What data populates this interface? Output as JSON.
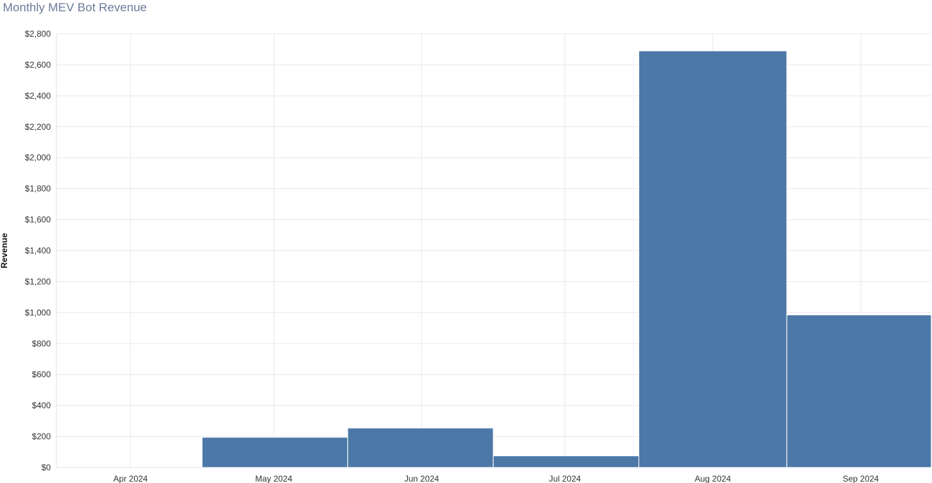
{
  "chart_data": {
    "type": "bar",
    "title": "Monthly MEV Bot Revenue",
    "xlabel": "",
    "ylabel": "Revenue",
    "categories": [
      "Apr 2024",
      "May 2024",
      "Jun 2024",
      "Jul 2024",
      "Aug 2024",
      "Sep 2024"
    ],
    "month_starts": [
      "2024-04-01",
      "2024-05-01",
      "2024-06-01",
      "2024-07-01",
      "2024-08-01",
      "2024-09-01"
    ],
    "values": [
      0,
      195,
      255,
      75,
      2690,
      985
    ],
    "ylim": [
      0,
      2800
    ],
    "yticks": [
      0,
      200,
      400,
      600,
      800,
      1000,
      1200,
      1400,
      1600,
      1800,
      2000,
      2200,
      2400,
      2600,
      2800
    ],
    "ytick_format": "$",
    "grid": true,
    "bar_color": "#4c78a8"
  }
}
